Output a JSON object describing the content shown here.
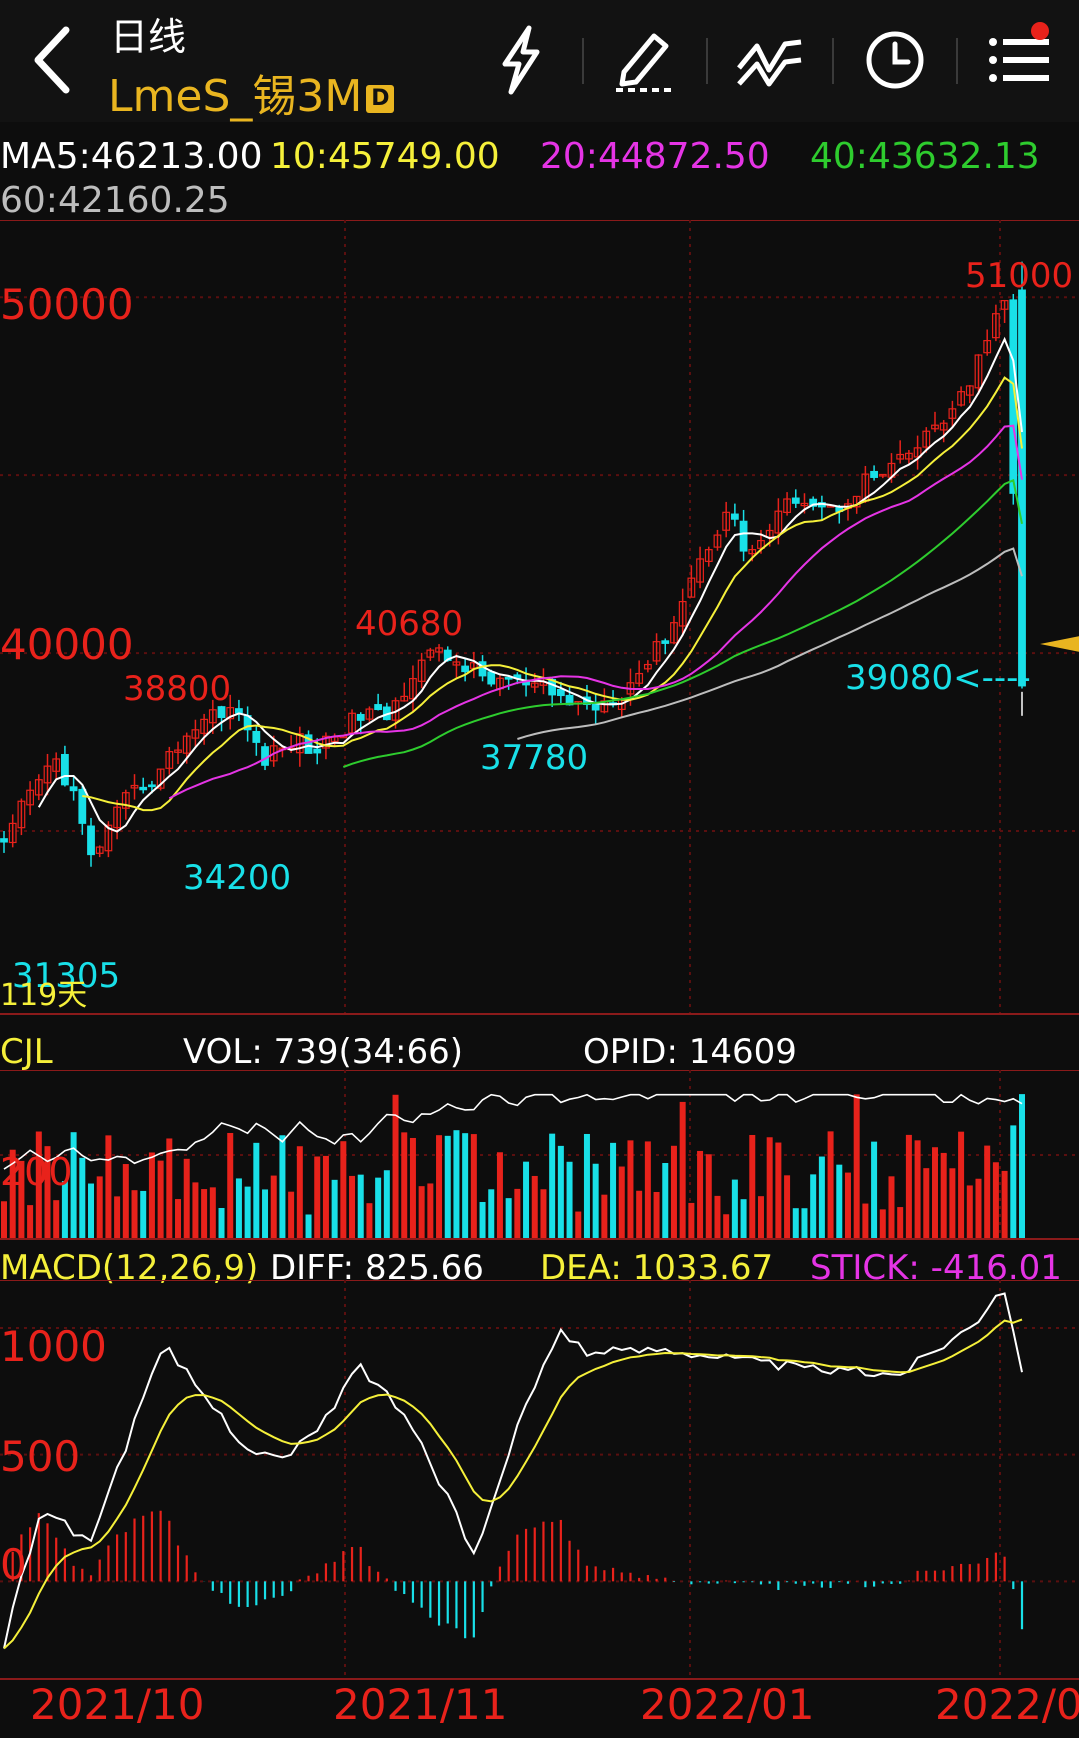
{
  "header": {
    "period": "日线",
    "symbol": "LmeS_锡3M",
    "badge": "D",
    "icons": [
      "back-icon",
      "lightning-icon",
      "pencil-icon",
      "indicator-icon",
      "clock-icon",
      "menu-icon"
    ],
    "notification_dot": true
  },
  "ma_legend": {
    "ma5": "MA5:46213.00",
    "ma10": "10:45749.00",
    "ma20": "20:44872.50",
    "ma40": "40:43632.13",
    "ma60": "60:42160.25"
  },
  "price_chart": {
    "axis_labels": [
      "50000",
      "40000"
    ],
    "high_label": "51000",
    "last_label": "39080<----",
    "annotations": [
      "40680",
      "38800",
      "37780",
      "34200",
      "31305"
    ],
    "days_label": "119天"
  },
  "volume_panel": {
    "title": "CJL",
    "vol": "VOL: 739(34:66)",
    "opid": "OPID: 14609",
    "axis_label": "200"
  },
  "macd_panel": {
    "title": "MACD(12,26,9)",
    "diff": "DIFF: 825.66",
    "dea": "DEA: 1033.67",
    "stick": "STICK: -416.01",
    "axis_labels": [
      "1000",
      "500",
      "0"
    ]
  },
  "x_axis": [
    "2021/10",
    "2021/11",
    "2022/01",
    "2022/0"
  ],
  "colors": {
    "up": "#e8221b",
    "down": "#19e0e8",
    "ma5": "#ffffff",
    "ma10": "#f5f03a",
    "ma20": "#e534e5",
    "ma40": "#2ecc2e",
    "ma60": "#bdbdbd",
    "grid": "#5a0f0f",
    "title_yellow": "#e9b520"
  },
  "chart_data": {
    "type": "candlestick",
    "title": "LmeS_锡3M",
    "ylim": [
      30500,
      51500
    ],
    "high": 51000,
    "last": 39080,
    "annotated_points": [
      {
        "label": "40680",
        "value": 40680
      },
      {
        "label": "38800",
        "value": 38800
      },
      {
        "label": "37780",
        "value": 37780
      },
      {
        "label": "34200",
        "value": 34200
      },
      {
        "label": "31305",
        "value": 31305
      }
    ],
    "close_path": [
      34500,
      35600,
      36400,
      37000,
      36100,
      34200,
      35000,
      35800,
      36300,
      36600,
      37400,
      37900,
      38300,
      38500,
      38000,
      37000,
      37300,
      37600,
      37200,
      37700,
      38000,
      38400,
      38100,
      38800,
      39800,
      40000,
      39800,
      39600,
      39200,
      39300,
      39100,
      39000,
      38800,
      38600,
      38500,
      38700,
      39000,
      39600,
      40200,
      41100,
      42300,
      43200,
      44100,
      42800,
      43200,
      43900,
      44500,
      44200,
      44000,
      44400,
      44900,
      45000,
      45400,
      45800,
      46400,
      46800,
      47500,
      49000,
      49800,
      39080
    ],
    "ma": {
      "ma5": 46213.0,
      "ma10": 45749.0,
      "ma20": 44872.5,
      "ma40": 43632.13,
      "ma60": 42160.25
    },
    "volume": {
      "last": 739,
      "opid": 14609
    },
    "macd": {
      "diff": 825.66,
      "dea": 1033.67,
      "stick": -416.01,
      "ylim": [
        -350,
        1150
      ]
    },
    "x_labels": [
      "2021/10",
      "2021/11",
      "2022/01",
      "2022/0"
    ]
  }
}
